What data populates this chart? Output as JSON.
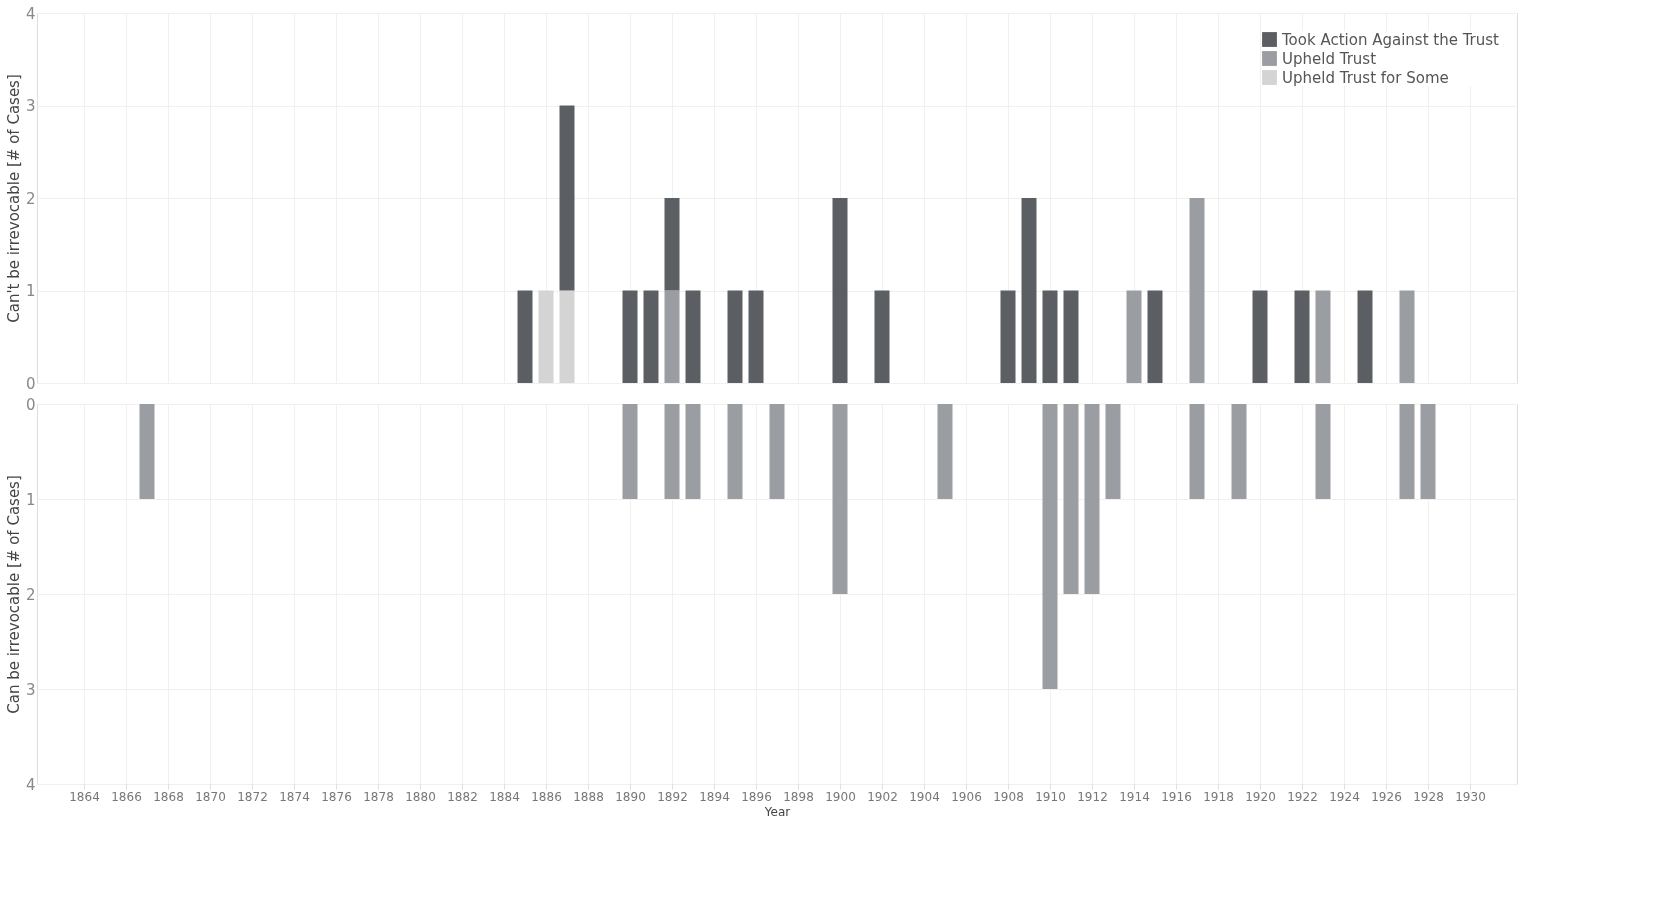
{
  "chart_data": [
    {
      "type": "bar",
      "stacked": true,
      "ylabel": "Can't be irrevocable [# of Cases]",
      "xlim": [
        1862,
        1932
      ],
      "xticks": [
        1864,
        1866,
        1868,
        1870,
        1872,
        1874,
        1876,
        1878,
        1880,
        1882,
        1884,
        1886,
        1888,
        1890,
        1892,
        1894,
        1896,
        1898,
        1900,
        1902,
        1904,
        1906,
        1908,
        1910,
        1912,
        1914,
        1916,
        1918,
        1920,
        1922,
        1924,
        1926,
        1928,
        1930
      ],
      "ylim": [
        0,
        4
      ],
      "yticks": [
        0,
        1,
        2,
        3,
        4
      ],
      "grid": true,
      "legend": "top right",
      "tick_labels": "y",
      "x": [
        1885,
        1886,
        1887,
        1890,
        1891,
        1892,
        1893,
        1895,
        1896,
        1900,
        1902,
        1908,
        1909,
        1910,
        1911,
        1914,
        1915,
        1917,
        1920,
        1922,
        1923,
        1925,
        1927
      ],
      "series": [
        {
          "name": "Upheld Trust for Some",
          "color": "#d4d4d4",
          "values": [
            null,
            1,
            1,
            null,
            null,
            null,
            null,
            null,
            null,
            null,
            null,
            null,
            null,
            null,
            null,
            null,
            null,
            null,
            null,
            null,
            null,
            null,
            null
          ]
        },
        {
          "name": "Upheld Trust",
          "color": "#9a9da2",
          "values": [
            null,
            null,
            null,
            null,
            null,
            1,
            null,
            null,
            null,
            null,
            null,
            null,
            null,
            null,
            null,
            1,
            null,
            2,
            null,
            null,
            1,
            null,
            1
          ]
        },
        {
          "name": "Took Action Against the Trust",
          "color": "#5b5e63",
          "values": [
            1,
            null,
            2,
            1,
            1,
            1,
            1,
            1,
            1,
            2,
            1,
            1,
            2,
            1,
            1,
            null,
            1,
            null,
            1,
            1,
            null,
            1,
            null
          ]
        }
      ]
    },
    {
      "type": "bar",
      "stacked": true,
      "ylabel": "Can be irrevocable [# of Cases]",
      "xlabel": "Year",
      "xlim": [
        1862,
        1932
      ],
      "xticks": [
        1864,
        1866,
        1868,
        1870,
        1872,
        1874,
        1876,
        1878,
        1880,
        1882,
        1884,
        1886,
        1888,
        1890,
        1892,
        1894,
        1896,
        1898,
        1900,
        1902,
        1904,
        1906,
        1908,
        1910,
        1912,
        1914,
        1916,
        1918,
        1920,
        1922,
        1924,
        1926,
        1928,
        1930
      ],
      "ylim": [
        4,
        0
      ],
      "yticks": [
        0,
        1,
        2,
        3,
        4
      ],
      "grid": true,
      "x": [
        1867,
        1890,
        1892,
        1893,
        1895,
        1897,
        1900,
        1905,
        1910,
        1911,
        1912,
        1913,
        1917,
        1919,
        1923,
        1927,
        1928
      ],
      "series": [
        {
          "name": "Upheld Trust",
          "color": "#9a9da2",
          "values": [
            1,
            1,
            1,
            1,
            1,
            1,
            2,
            1,
            3,
            2,
            2,
            1,
            1,
            1,
            1,
            1,
            1
          ]
        }
      ]
    }
  ]
}
